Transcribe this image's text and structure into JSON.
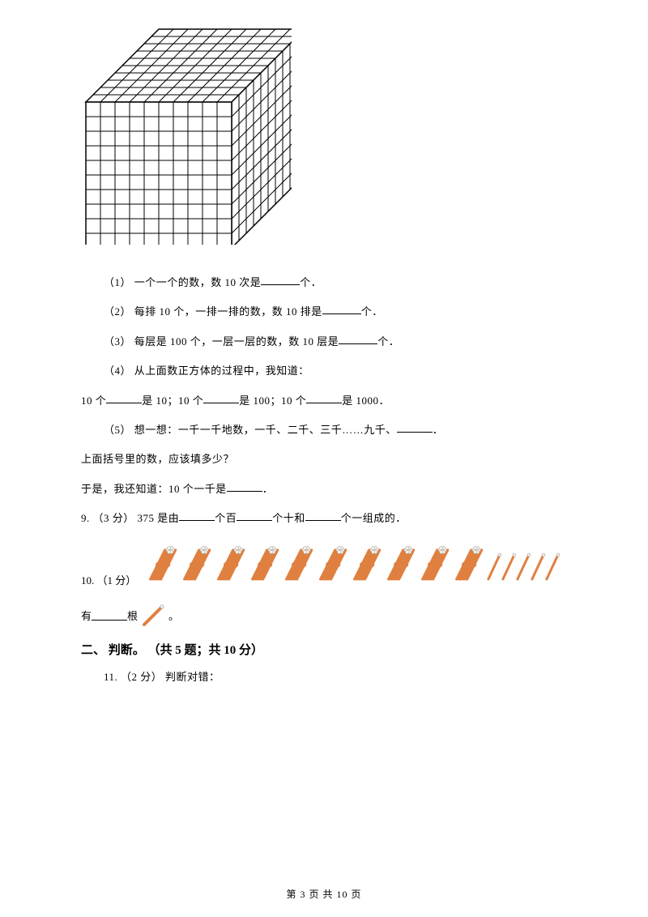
{
  "cube": {
    "grid": 10,
    "cell": 18,
    "stroke": "#000000",
    "fill": "#ffffff",
    "depth_ratio": 0.5
  },
  "q1": "（1） 一个一个的数，数 10 次是",
  "q1_suffix": "个．",
  "q2": "（2） 每排 10 个，一排一排的数，数 10 排是",
  "q2_suffix": "个．",
  "q3": "（3） 每层是 100 个，一层一层的数，数 10 层是",
  "q3_suffix": "个．",
  "q4": "（4） 从上面数正方体的过程中，我知道：",
  "q4b_a": "10 个",
  "q4b_b": "是 10；10 个",
  "q4b_c": "是 100；10 个",
  "q4b_d": "是 1000．",
  "q5": "（5） 想一想：一千一千地数，一千、二千、三千……九千、",
  "q5_suffix": "．",
  "q5b": "上面括号里的数，应该填多少？",
  "q5c_a": "于是，我还知道：10 个一千是",
  "q5c_b": "．",
  "q9_a": "9. （3 分） 375 是由",
  "q9_b": "个百",
  "q9_c": "个十和",
  "q9_d": "个一组成的．",
  "q10_label": "10. （1 分）",
  "sticks": {
    "bundle_count": 10,
    "single_count": 5,
    "bundle_color": "#e08040",
    "bundle_tip": "#f5f0e8",
    "bundle_tip_stroke": "#999999",
    "single_color": "#e08040"
  },
  "has_label": "有",
  "has_suffix": "根",
  "has_end": " 。",
  "section2": "二、 判断。 （共 5 题；共 10 分）",
  "q11": "11. （2 分） 判断对错：",
  "footer": "第 3 页 共 10 页"
}
